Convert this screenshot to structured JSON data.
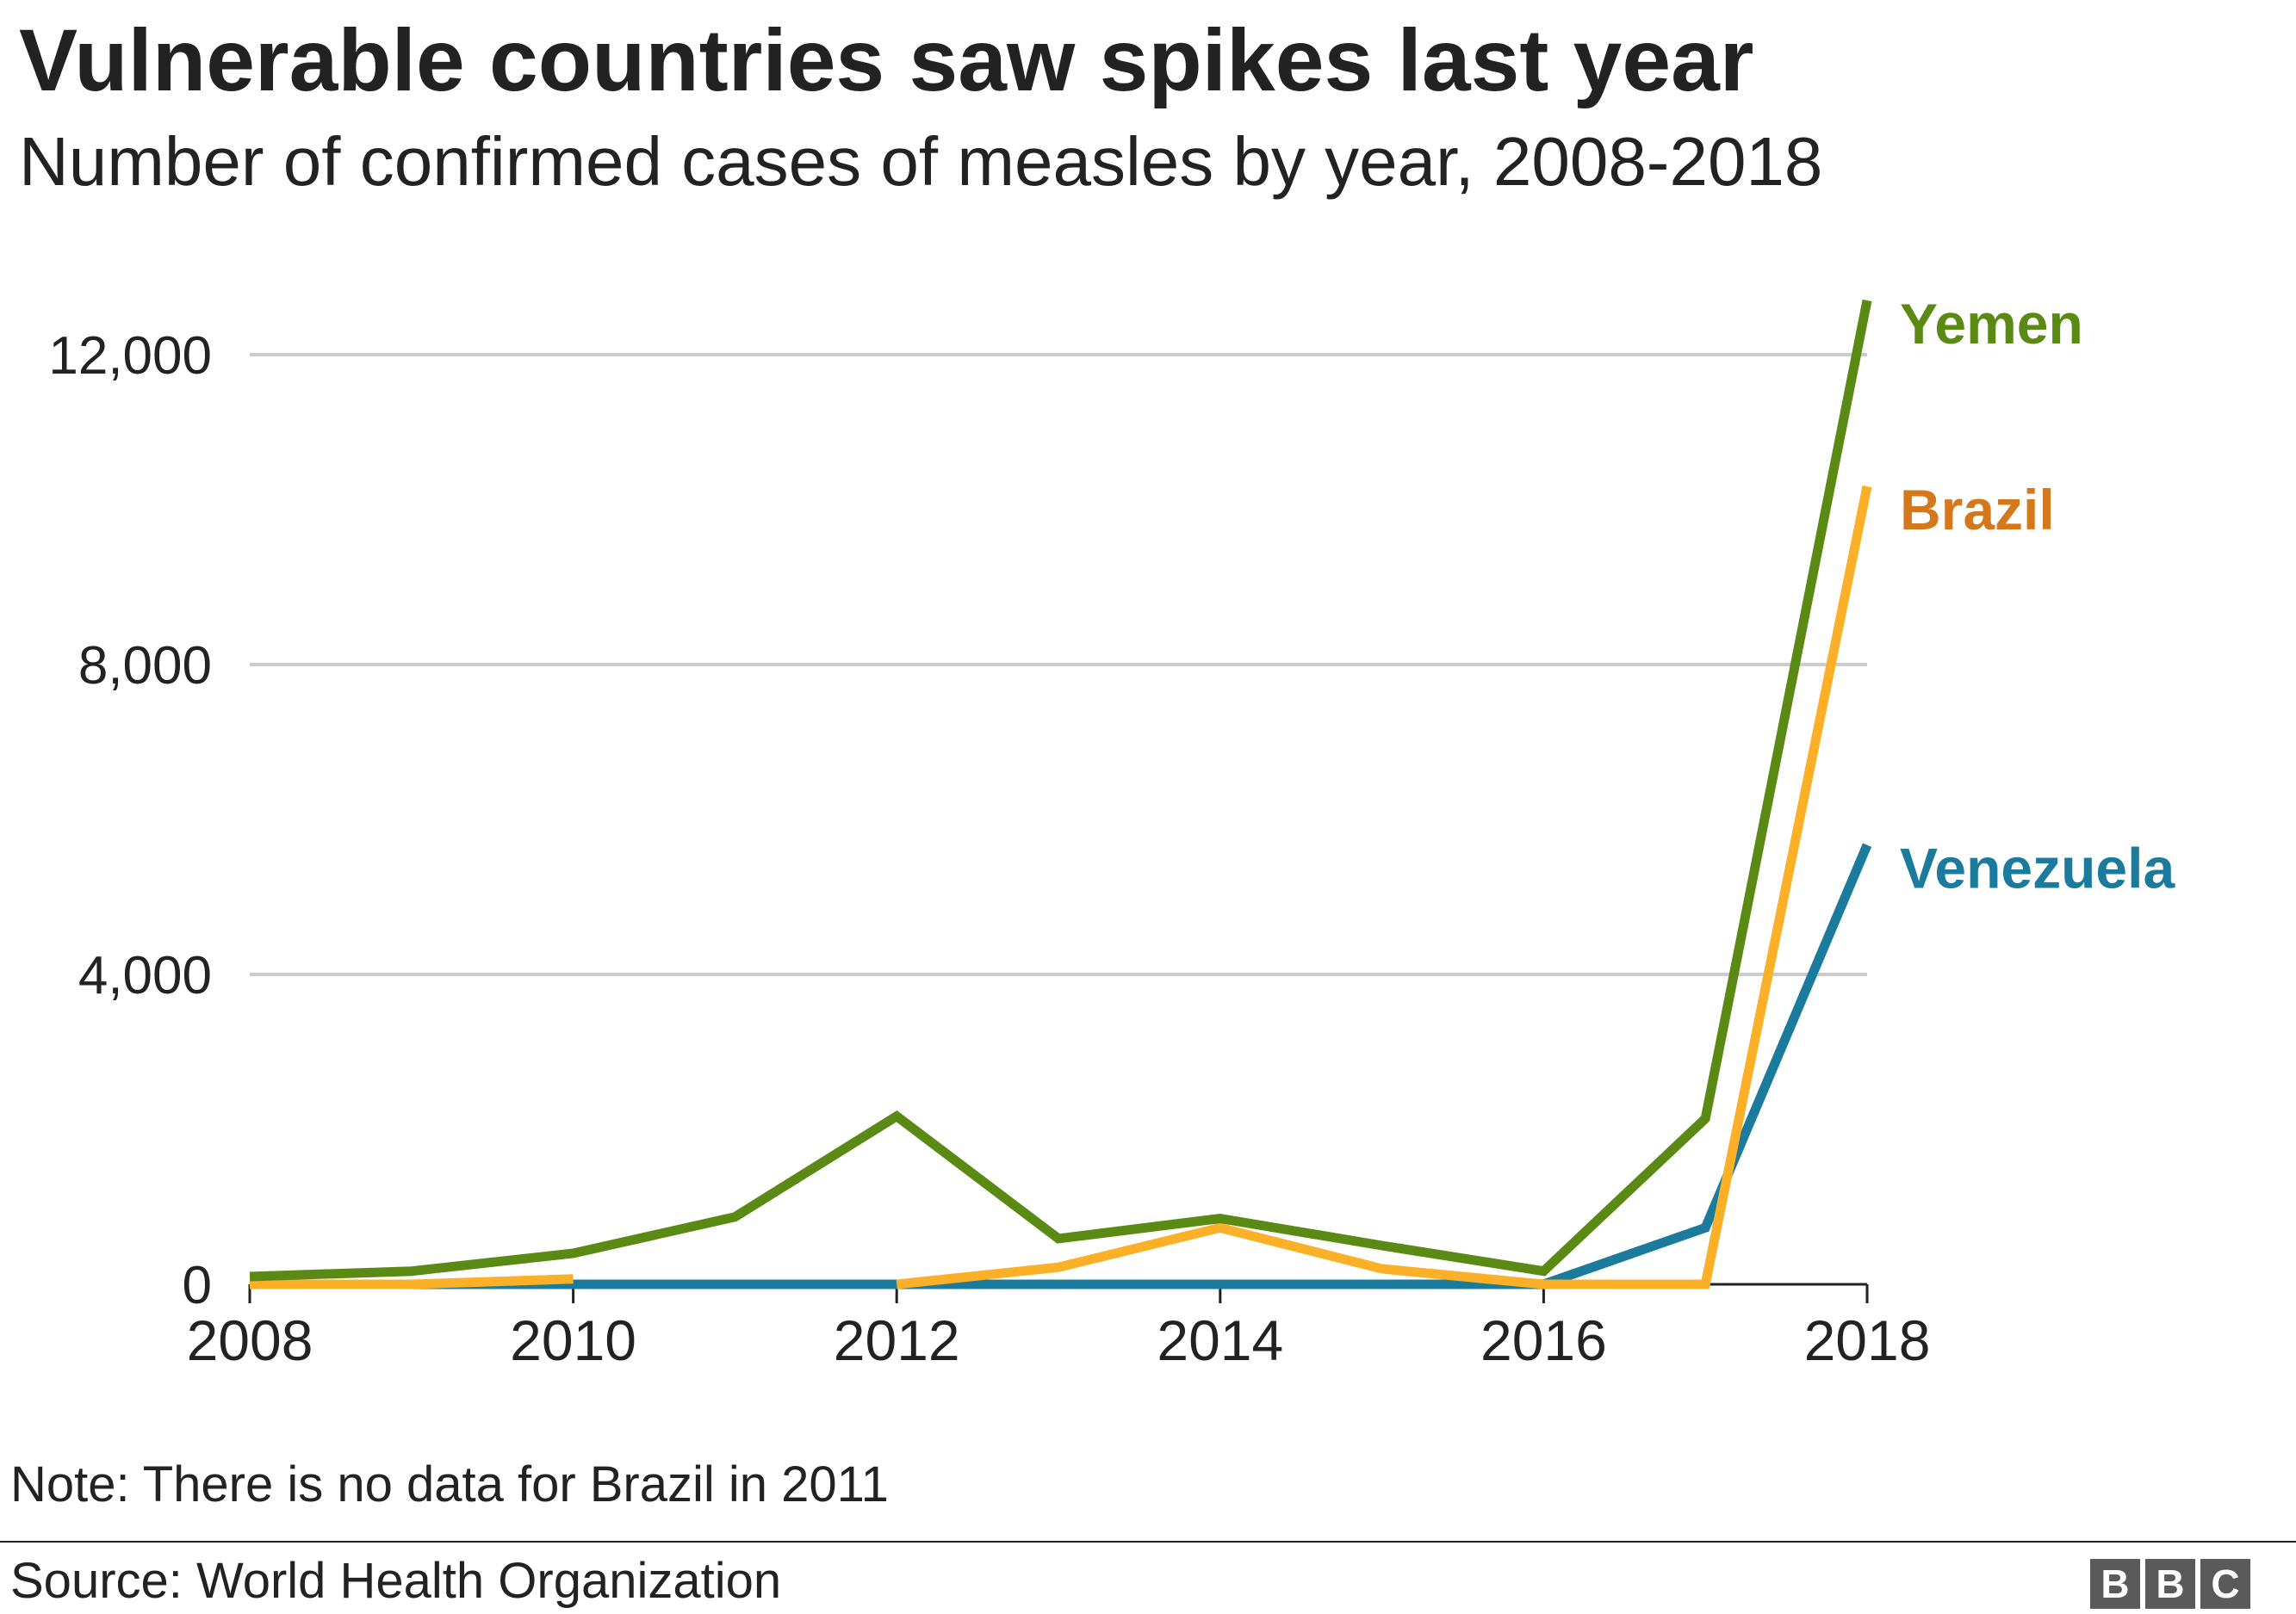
{
  "chart_data": {
    "type": "line",
    "title": "Vulnerable countries saw spikes last year",
    "subtitle": "Number of confirmed cases of measles by year, 2008-2018",
    "x": [
      2008,
      2009,
      2010,
      2011,
      2012,
      2013,
      2014,
      2015,
      2016,
      2017,
      2018
    ],
    "x_ticks": [
      "2008",
      "2010",
      "2012",
      "2014",
      "2016",
      "2018"
    ],
    "y_ticks": [
      "0",
      "4,000",
      "8,000",
      "12,000"
    ],
    "ylim": [
      0,
      12800
    ],
    "grid": true,
    "legend": "direct labels at line ends (right)",
    "series": [
      {
        "name": "Yemen",
        "color": "#5a8a14",
        "label_color": "#5a8a14",
        "values": [
          100,
          170,
          400,
          870,
          2170,
          590,
          850,
          500,
          170,
          2140,
          12700
        ]
      },
      {
        "name": "Brazil",
        "color": "#fbb027",
        "label_color": "#d4781d",
        "values": [
          0,
          0,
          70,
          null,
          0,
          220,
          730,
          200,
          0,
          0,
          10300
        ]
      },
      {
        "name": "Venezuela",
        "color": "#1a7b9c",
        "label_color": "#1a7b9c",
        "values": [
          0,
          0,
          0,
          0,
          0,
          0,
          0,
          0,
          0,
          730,
          5670
        ]
      }
    ]
  },
  "note": "Note: There is no data for Brazil in 2011",
  "source": "Source: World Health Organization",
  "logo": {
    "letters": [
      "B",
      "B",
      "C"
    ]
  },
  "colors": {
    "gridline": "#cccccc",
    "axis": "#222222",
    "text": "#222222",
    "logo": "#5a5a5a"
  }
}
